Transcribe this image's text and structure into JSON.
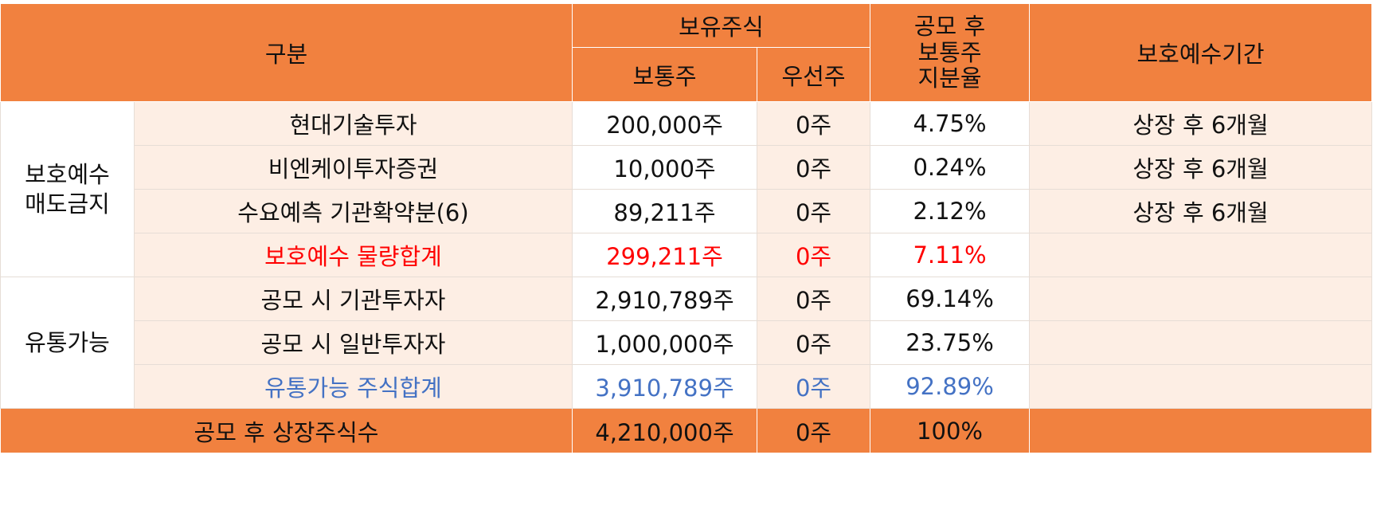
{
  "header": {
    "category": "구분",
    "holdings": "보유주식",
    "common": "보통주",
    "preferred": "우선주",
    "ratio_line1": "공모 후",
    "ratio_line2": "보통주",
    "ratio_line3": "지분율",
    "lockup_period": "보호예수기간"
  },
  "groups": {
    "protected_line1": "보호예수",
    "protected_line2": "매도금지",
    "tradable": "유통가능"
  },
  "rows": [
    {
      "name": "현대기술투자",
      "common": "200,000주",
      "preferred": "0주",
      "ratio": "4.75%",
      "period": "상장 후 6개월"
    },
    {
      "name": "비엔케이투자증권",
      "common": "10,000주",
      "preferred": "0주",
      "ratio": "0.24%",
      "period": "상장 후 6개월"
    },
    {
      "name": "수요예측 기관확약분(6)",
      "common": "89,211주",
      "preferred": "0주",
      "ratio": "2.12%",
      "period": "상장 후 6개월"
    },
    {
      "name": "보호예수 물량합계",
      "common": "299,211주",
      "preferred": "0주",
      "ratio": "7.11%",
      "period": ""
    },
    {
      "name": "공모 시 기관투자자",
      "common": "2,910,789주",
      "preferred": "0주",
      "ratio": "69.14%",
      "period": ""
    },
    {
      "name": "공모 시 일반투자자",
      "common": "1,000,000주",
      "preferred": "0주",
      "ratio": "23.75%",
      "period": ""
    },
    {
      "name": "유통가능 주식합계",
      "common": "3,910,789주",
      "preferred": "0주",
      "ratio": "92.89%",
      "period": ""
    }
  ],
  "total": {
    "name": "공모 후 상장주식수",
    "common": "4,210,000주",
    "preferred": "0주",
    "ratio": "100%",
    "period": ""
  },
  "colors": {
    "header": "#f1813f",
    "row": "#fdeee4",
    "subtotal_protected": "#ff0000",
    "subtotal_tradable": "#4472c4"
  }
}
